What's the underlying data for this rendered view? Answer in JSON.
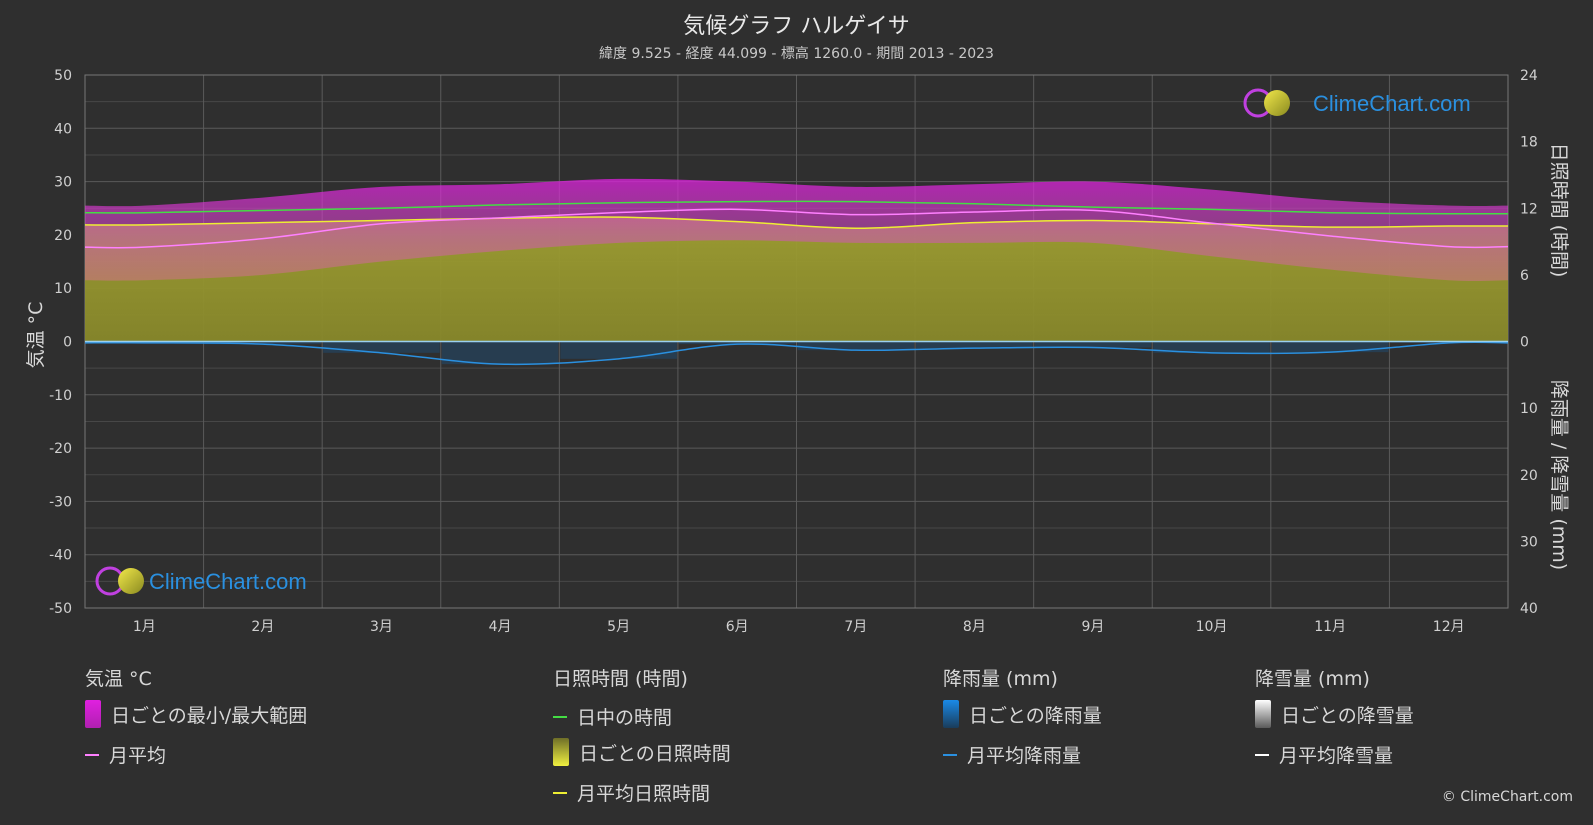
{
  "header": {
    "title": "気候グラフ ハルゲイサ",
    "subtitle": "緯度 9.525 - 経度 44.099 - 標高 1260.0 - 期間 2013 - 2023"
  },
  "brand": {
    "name": "ClimeChart.com",
    "copyright": "© ClimeChart.com"
  },
  "legend": {
    "temperature": {
      "heading": "気温 °C",
      "daily_range": "日ごとの最小/最大範囲",
      "monthly_avg": "月平均"
    },
    "sunshine": {
      "heading": "日照時間 (時間)",
      "daylight": "日中の時間",
      "daily_sunshine": "日ごとの日照時間",
      "monthly_avg_sunshine": "月平均日照時間"
    },
    "rain": {
      "heading": "降雨量 (mm)",
      "daily_rain": "日ごとの降雨量",
      "monthly_avg_rain": "月平均降雨量"
    },
    "snow": {
      "heading": "降雪量 (mm)",
      "daily_snow": "日ごとの降雪量",
      "monthly_avg_snow": "月平均降雪量"
    }
  },
  "colors": {
    "background": "#2f2f2f",
    "grid": "#555555",
    "temp_range": "#e020e0",
    "temp_avg": "#ff80ff",
    "daylight": "#44dd44",
    "sunshine_fill": "#9c9c30",
    "sunshine_avg": "#eeee33",
    "rain": "#1a7fd0",
    "rain_avg": "#2a90e0",
    "snow": "#ffffff"
  },
  "chart_data": {
    "type": "area",
    "categories": [
      "1月",
      "2月",
      "3月",
      "4月",
      "5月",
      "6月",
      "7月",
      "8月",
      "9月",
      "10月",
      "11月",
      "12月"
    ],
    "left_axis": {
      "label": "気温 °C",
      "range": [
        -50,
        50
      ],
      "ticks": [
        "50",
        "40",
        "30",
        "20",
        "10",
        "0",
        "-10",
        "-20",
        "-30",
        "-40",
        "-50"
      ]
    },
    "right_axis_top": {
      "label": "日照時間 (時間)",
      "range": [
        0,
        24
      ],
      "ticks": [
        "24",
        "18",
        "12",
        "6",
        "0"
      ]
    },
    "right_axis_bottom": {
      "label": "降雨量 / 降雪量 (mm)",
      "range": [
        0,
        40
      ],
      "ticks": [
        "0",
        "10",
        "20",
        "30",
        "40"
      ]
    },
    "grid": true,
    "series": [
      {
        "name": "日中の時間",
        "unit": "h",
        "values": [
          11.6,
          11.8,
          12.0,
          12.3,
          12.5,
          12.6,
          12.6,
          12.4,
          12.1,
          11.9,
          11.6,
          11.5
        ]
      },
      {
        "name": "月平均日照時間",
        "unit": "h",
        "values": [
          10.5,
          10.7,
          10.9,
          11.1,
          11.2,
          10.8,
          10.2,
          10.7,
          10.9,
          10.6,
          10.3,
          10.4
        ]
      },
      {
        "name": "月平均",
        "unit": "°C",
        "values": [
          17.7,
          19.3,
          22.1,
          23.2,
          24.2,
          24.8,
          23.8,
          24.3,
          24.6,
          22.2,
          19.8,
          17.8
        ]
      },
      {
        "name": "日ごとの最小/最大範囲 (max)",
        "unit": "°C",
        "values": [
          25.5,
          27.0,
          29.0,
          29.5,
          30.5,
          30.0,
          29.0,
          29.5,
          30.0,
          28.5,
          26.5,
          25.5
        ]
      },
      {
        "name": "日ごとの最小/最大範囲 (min)",
        "unit": "°C",
        "values": [
          11.5,
          12.5,
          15.0,
          17.0,
          18.5,
          19.0,
          18.5,
          18.5,
          18.5,
          16.0,
          13.5,
          11.5
        ]
      },
      {
        "name": "月平均降雨量",
        "unit": "mm",
        "values": [
          0.2,
          0.4,
          1.7,
          3.4,
          2.6,
          0.4,
          1.3,
          1.0,
          0.9,
          1.7,
          1.6,
          0.2
        ]
      },
      {
        "name": "月平均降雪量",
        "unit": "mm",
        "values": [
          0,
          0,
          0,
          0,
          0,
          0,
          0,
          0,
          0,
          0,
          0,
          0
        ]
      }
    ]
  }
}
